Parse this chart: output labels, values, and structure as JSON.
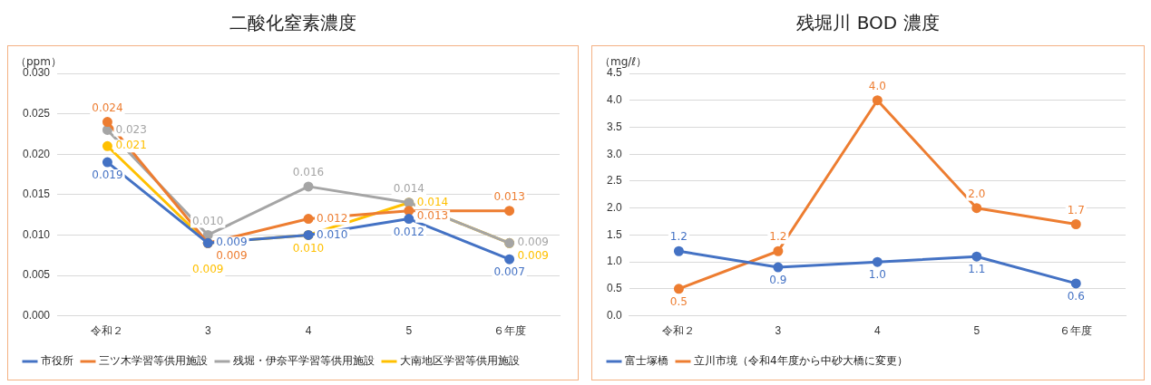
{
  "chart_data": [
    {
      "type": "line",
      "title": "二酸化窒素濃度",
      "ylabel": "（ppm）",
      "categories": [
        "令和２",
        "3",
        "4",
        "5",
        "６年度"
      ],
      "series": [
        {
          "name": "市役所",
          "color": "#4472c4",
          "values": [
            0.019,
            0.009,
            0.01,
            0.012,
            0.007
          ],
          "value_labels": [
            "0.019",
            "0.009",
            "0.010",
            "0.012",
            "0.007"
          ]
        },
        {
          "name": "三ツ木学習等供用施設",
          "color": "#ed7d31",
          "values": [
            0.024,
            0.009,
            0.012,
            0.013,
            0.013
          ],
          "value_labels": [
            "0.024",
            "0.009",
            "0.012",
            "0.013",
            "0.013"
          ]
        },
        {
          "name": "残堀・伊奈平学習等供用施設",
          "color": "#a5a5a5",
          "values": [
            0.023,
            0.01,
            0.016,
            0.014,
            0.009
          ],
          "value_labels": [
            "0.023",
            "0.010",
            "0.016",
            "0.014",
            "0.009"
          ]
        },
        {
          "name": "大南地区学習等供用施設",
          "color": "#ffc000",
          "values": [
            0.021,
            0.009,
            0.01,
            0.014,
            0.009
          ],
          "value_labels": [
            "0.021",
            "0.009",
            "0.010",
            "0.014",
            "0.009"
          ]
        }
      ],
      "ylim": [
        0,
        0.03
      ],
      "yticks": [
        {
          "value": 0,
          "label": "0.000"
        },
        {
          "value": 0.005,
          "label": "0.005"
        },
        {
          "value": 0.01,
          "label": "0.010"
        },
        {
          "value": 0.015,
          "label": "0.015"
        },
        {
          "value": 0.02,
          "label": "0.020"
        },
        {
          "value": 0.025,
          "label": "0.025"
        },
        {
          "value": 0.03,
          "label": "0.030"
        }
      ],
      "grid": "y",
      "legend": "bottom",
      "marker": "circle"
    },
    {
      "type": "line",
      "title": "残堀川 BOD 濃度",
      "ylabel": "（mg/ℓ）",
      "categories": [
        "令和２",
        "3",
        "4",
        "5",
        "６年度"
      ],
      "series": [
        {
          "name": "富士塚橋",
          "color": "#4472c4",
          "values": [
            1.2,
            0.9,
            1.0,
            1.1,
            0.6
          ],
          "value_labels": [
            "1.2",
            "0.9",
            "1.0",
            "1.1",
            "0.6"
          ]
        },
        {
          "name": "立川市境（令和4年度から中砂大橋に変更）",
          "color": "#ed7d31",
          "values": [
            0.5,
            1.2,
            4.0,
            2.0,
            1.7
          ],
          "value_labels": [
            "0.5",
            "1.2",
            "4.0",
            "2.0",
            "1.7"
          ]
        }
      ],
      "ylim": [
        0,
        4.5
      ],
      "yticks": [
        {
          "value": 0,
          "label": "0.0"
        },
        {
          "value": 0.5,
          "label": "0.5"
        },
        {
          "value": 1,
          "label": "1.0"
        },
        {
          "value": 1.5,
          "label": "1.5"
        },
        {
          "value": 2,
          "label": "2.0"
        },
        {
          "value": 2.5,
          "label": "2.5"
        },
        {
          "value": 3,
          "label": "3.0"
        },
        {
          "value": 3.5,
          "label": "3.5"
        },
        {
          "value": 4,
          "label": "4.0"
        },
        {
          "value": 4.5,
          "label": "4.5"
        }
      ],
      "grid": "y",
      "legend": "bottom",
      "marker": "circle"
    }
  ]
}
